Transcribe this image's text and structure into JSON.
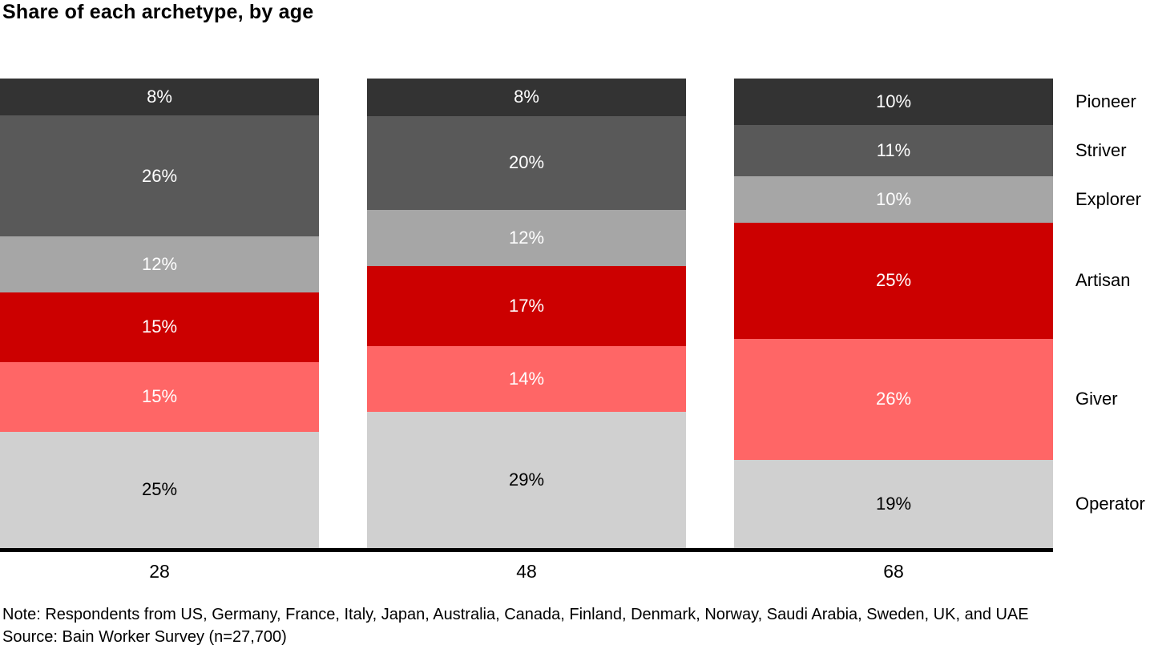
{
  "title": "Share of each archetype, by age",
  "chart_data": {
    "type": "bar",
    "stacked": true,
    "orientation": "vertical",
    "title": "Share of each archetype, by age",
    "xlabel": "",
    "ylabel": "",
    "value_suffix": "%",
    "grid": false,
    "legend_position": "right",
    "categories": [
      "28",
      "48",
      "68"
    ],
    "series": [
      {
        "name": "Pioneer",
        "color": "#333333",
        "label_color": "#ffffff",
        "values": [
          8,
          8,
          10
        ]
      },
      {
        "name": "Striver",
        "color": "#595959",
        "label_color": "#ffffff",
        "values": [
          26,
          20,
          11
        ]
      },
      {
        "name": "Explorer",
        "color": "#a6a6a6",
        "label_color": "#ffffff",
        "values": [
          12,
          12,
          10
        ]
      },
      {
        "name": "Artisan",
        "color": "#cc0000",
        "label_color": "#ffffff",
        "values": [
          15,
          17,
          25
        ]
      },
      {
        "name": "Giver",
        "color": "#ff6666",
        "label_color": "#ffffff",
        "values": [
          15,
          14,
          26
        ]
      },
      {
        "name": "Operator",
        "color": "#d0d0d0",
        "label_color": "#000000",
        "values": [
          25,
          29,
          19
        ]
      }
    ]
  },
  "axis": {
    "line_color": "#000000"
  },
  "note": "Note: Respondents from US, Germany, France, Italy, Japan, Australia, Canada, Finland, Denmark, Norway, Saudi Arabia, Sweden, UK, and UAE",
  "source": "Source: Bain Worker Survey (n=27,700)"
}
